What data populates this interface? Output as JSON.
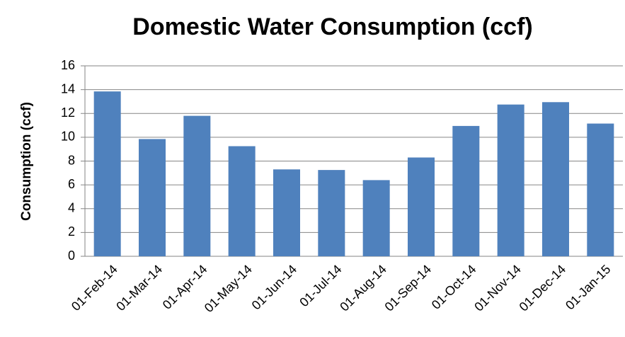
{
  "chart_data": {
    "type": "bar",
    "title": "Domestic Water Consumption (ccf)",
    "y_label": "Consumption (ccf)",
    "categories": [
      "01-Feb-14",
      "01-Mar-14",
      "01-Apr-14",
      "01-May-14",
      "01-Jun-14",
      "01-Jul-14",
      "01-Aug-14",
      "01-Sep-14",
      "01-Oct-14",
      "01-Nov-14",
      "01-Dec-14",
      "01-Jan-15"
    ],
    "values": [
      13.85,
      9.85,
      11.8,
      9.25,
      7.3,
      7.25,
      6.4,
      8.3,
      10.95,
      12.75,
      12.95,
      11.15
    ],
    "color": "#4f81bd",
    "ylim": [
      0,
      16
    ],
    "yticks": [
      0,
      2,
      4,
      6,
      8,
      10,
      12,
      14,
      16
    ],
    "grid": true
  }
}
